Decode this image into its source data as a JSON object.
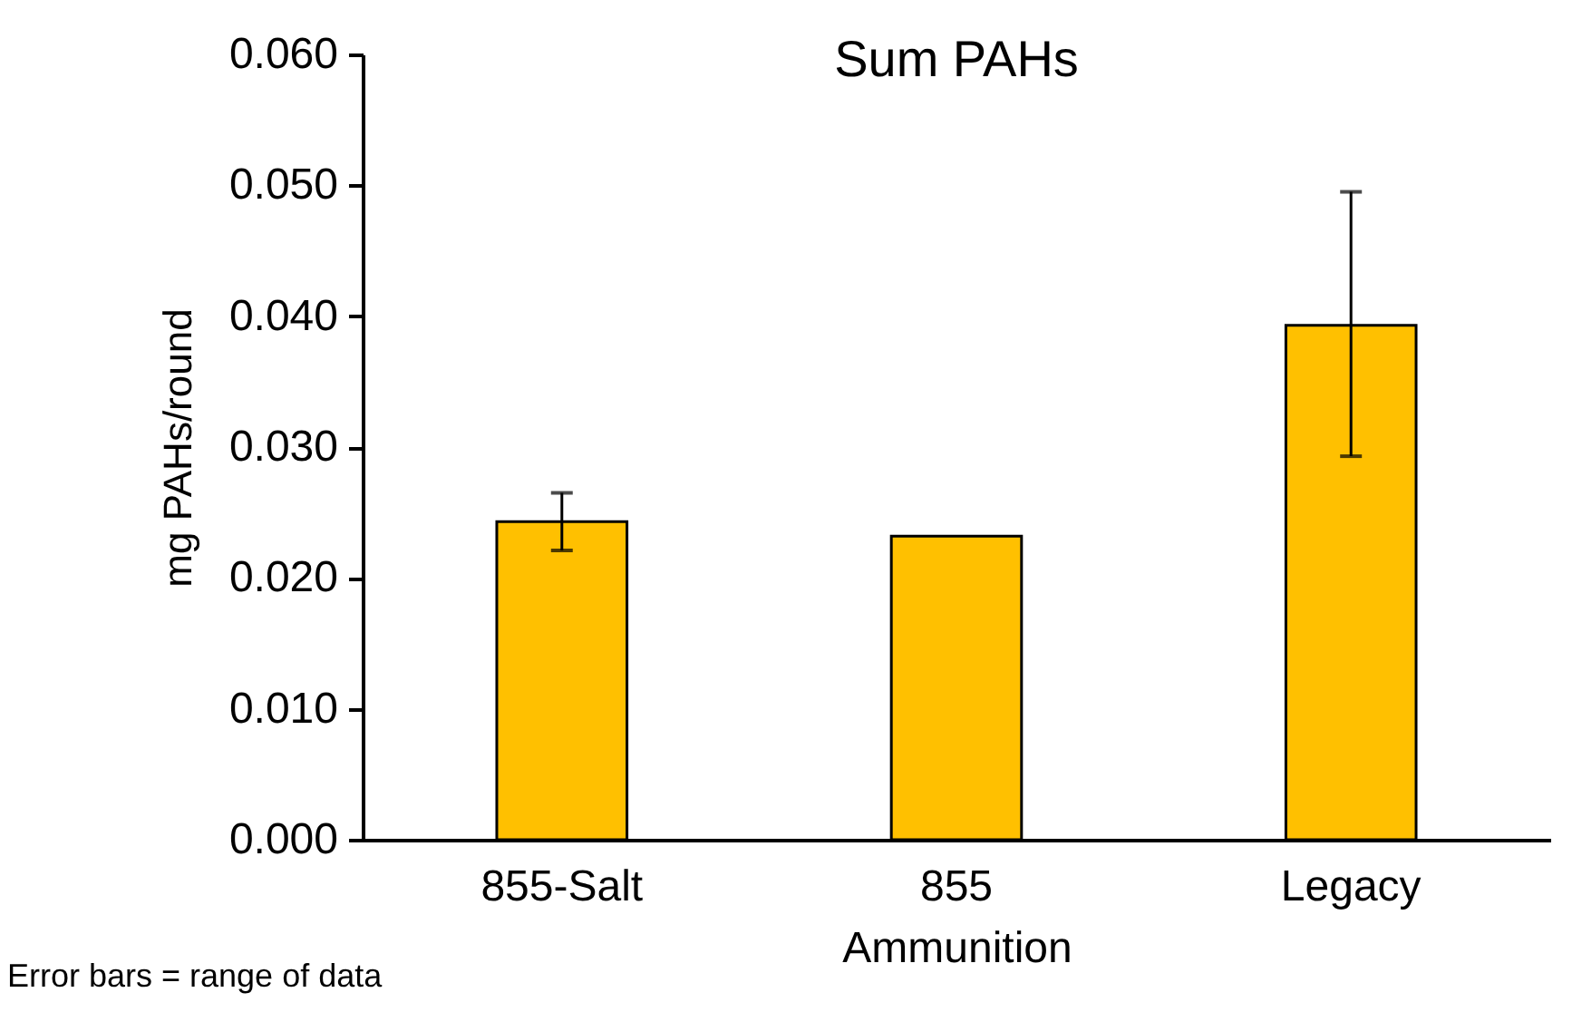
{
  "chart_data": {
    "type": "bar",
    "title": "Sum PAHs",
    "xlabel": "Ammunition",
    "ylabel": "mg PAHs/round",
    "categories": [
      "855-Salt",
      "855",
      "Legacy"
    ],
    "values": [
      0.0243,
      0.0232,
      0.0393
    ],
    "color": "#ffc000",
    "errors": [
      [
        0.0221,
        0.0265
      ],
      null,
      [
        0.0293,
        0.0495
      ]
    ],
    "ylim": [
      0,
      0.06
    ],
    "yticks": [
      {
        "value": 0,
        "label": "0.000"
      },
      {
        "value": 0.01,
        "label": "0.010"
      },
      {
        "value": 0.02,
        "label": "0.020"
      },
      {
        "value": 0.03,
        "label": "0.030"
      },
      {
        "value": 0.04,
        "label": "0.040"
      },
      {
        "value": 0.05,
        "label": "0.050"
      },
      {
        "value": 0.06,
        "label": "0.060"
      }
    ],
    "annotations": [
      "Error bars = range of data"
    ],
    "grid": false
  }
}
